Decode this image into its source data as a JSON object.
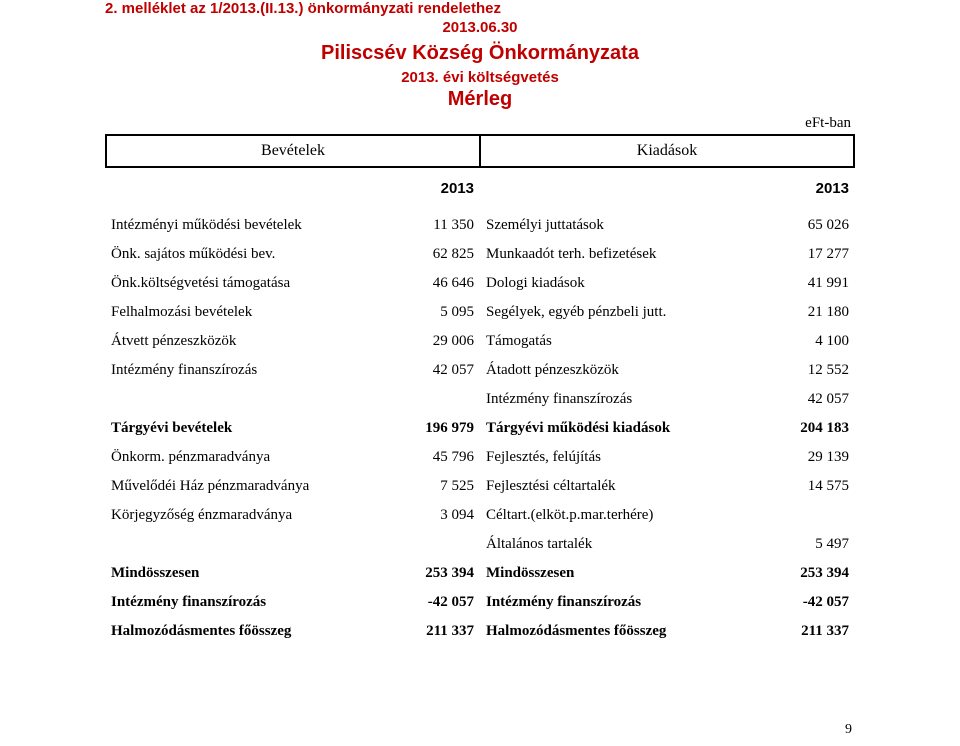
{
  "colors": {
    "accent": "#c00000",
    "text": "#000000",
    "background": "#ffffff",
    "border": "#000000"
  },
  "typography": {
    "header_font": "Arial",
    "body_font": "Georgia",
    "header_size_pt": 15,
    "title_size_pt": 20,
    "body_size_pt": 15
  },
  "titles": {
    "line1": "2. melléklet az 1/2013.(II.13.) önkormányzati rendelethez",
    "date": "2013.06.30",
    "line2": "Piliscsév Község Önkormányzata",
    "line3": "2013. évi költségvetés",
    "line4": "Mérleg",
    "unit": "eFt-ban"
  },
  "header": {
    "left": "Bevételek",
    "right": "Kiadások",
    "year_left": "2013",
    "year_right": "2013"
  },
  "rows": [
    {
      "l": "Intézményi  működési bevételek",
      "lv": "11 350",
      "r": "Személyi juttatások",
      "rv": "65 026"
    },
    {
      "l": "Önk. sajátos működési bev.",
      "lv": "62 825",
      "r": "Munkaadót terh. befizetések",
      "rv": "17 277"
    },
    {
      "l": "Önk.költségvetési támogatása",
      "lv": "46 646",
      "r": "Dologi kiadások",
      "rv": "41 991"
    },
    {
      "l": "Felhalmozási bevételek",
      "lv": "5 095",
      "r": "Segélyek, egyéb pénzbeli jutt.",
      "rv": "21 180"
    },
    {
      "l": "Átvett pénzeszközök",
      "lv": "29 006",
      "r": "Támogatás",
      "rv": "4 100"
    },
    {
      "l": "Intézmény finanszírozás",
      "lv": "42 057",
      "r": "Átadott pénzeszközök",
      "rv": "12 552"
    },
    {
      "l": "",
      "lv": "",
      "r": "Intézmény finanszírozás",
      "rv": "42 057"
    },
    {
      "l": "Tárgyévi bevételek",
      "lv": "196 979",
      "r": "Tárgyévi működési kiadások",
      "rv": "204 183",
      "bold": true
    },
    {
      "l": "Önkorm. pénzmaradványa",
      "lv": "45 796",
      "r": "Fejlesztés, felújítás",
      "rv": "29 139"
    },
    {
      "l": "Művelődéi Ház pénzmaradványa",
      "lv": "7 525",
      "r": "Fejlesztési céltartalék",
      "rv": "14 575"
    },
    {
      "l": "Körjegyzőség énzmaradványa",
      "lv": "3 094",
      "r": "Céltart.(elköt.p.mar.terhére)",
      "rv": ""
    },
    {
      "l": "",
      "lv": "",
      "r": "Általános tartalék",
      "rv": "5 497"
    },
    {
      "l": "Mindösszesen",
      "lv": "253 394",
      "r": "Mindösszesen",
      "rv": "253 394",
      "bold": true
    },
    {
      "l": "Intézmény finanszírozás",
      "lv": "-42 057",
      "r": "Intézmény finanszírozás",
      "rv": "-42 057",
      "bold": true
    },
    {
      "l": "Halmozódásmentes főösszeg",
      "lv": "211 337",
      "r": "Halmozódásmentes főösszeg",
      "rv": "211 337",
      "bold": true
    }
  ],
  "page_number": "9"
}
